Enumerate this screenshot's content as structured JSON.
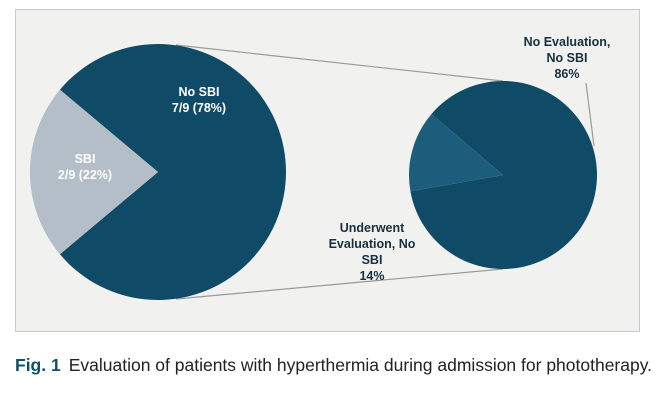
{
  "chart_data": [
    {
      "type": "pie",
      "slices": [
        {
          "name": "No SBI",
          "value_text": "7/9 (78%)",
          "count": 7,
          "total": 9,
          "percent": 78,
          "color": "#0f4a66"
        },
        {
          "name": "SBI",
          "value_text": "2/9 (22%)",
          "count": 2,
          "total": 9,
          "percent": 22,
          "color": "#b3bec9"
        }
      ]
    },
    {
      "type": "pie",
      "breakdown_of": "No SBI",
      "slices": [
        {
          "name_lines": [
            "No Evaluation,",
            "No SBI"
          ],
          "percent_text": "86%",
          "percent": 86,
          "color": "#0f4a66"
        },
        {
          "name_lines": [
            "Underwent",
            "Evaluation, No",
            "SBI"
          ],
          "percent_text": "14%",
          "percent": 14,
          "color": "#1c5d7c"
        }
      ]
    }
  ],
  "caption": {
    "label": "Fig. 1",
    "text": "Evaluation of patients with hyperthermia during admission for phototherapy."
  }
}
